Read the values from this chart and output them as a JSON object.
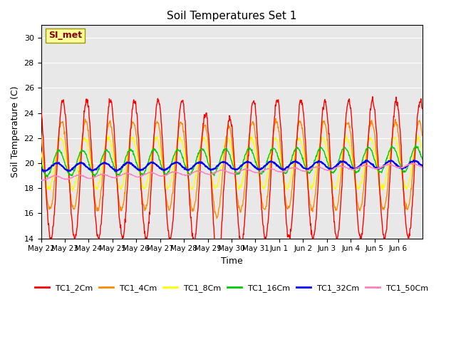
{
  "title": "Soil Temperatures Set 1",
  "xlabel": "Time",
  "ylabel": "Soil Temperature (C)",
  "ylim": [
    14,
    31
  ],
  "yticks": [
    14,
    16,
    18,
    20,
    22,
    24,
    26,
    28,
    30
  ],
  "series_colors": {
    "TC1_2Cm": "#FF0000",
    "TC1_4Cm": "#FF8C00",
    "TC1_8Cm": "#FFFF00",
    "TC1_16Cm": "#00CC00",
    "TC1_32Cm": "#0000FF",
    "TC1_50Cm": "#FF80C0"
  },
  "annotation_text": "SI_met",
  "annotation_color": "#8B0000",
  "annotation_bg": "#FFFF99",
  "background_color": "#E8E8E8",
  "xtick_labels": [
    "May 22",
    "May 23",
    "May 24",
    "May 25",
    "May 26",
    "May 27",
    "May 28",
    "May 29",
    "May 30",
    "May 31",
    "Jun 1",
    "Jun 2",
    "Jun 3",
    "Jun 4",
    "Jun 5",
    "Jun 6"
  ],
  "legend_labels": [
    "TC1_2Cm",
    "TC1_4Cm",
    "TC1_8Cm",
    "TC1_16Cm",
    "TC1_32Cm",
    "TC1_50Cm"
  ]
}
